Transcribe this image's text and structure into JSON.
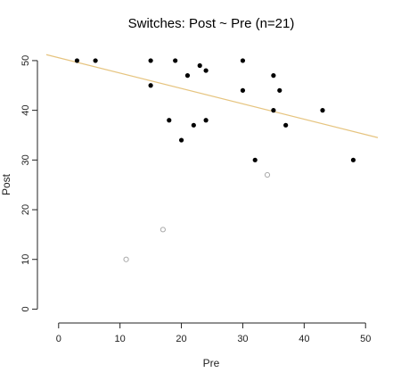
{
  "chart_data": {
    "type": "scatter",
    "title": "Switches: Post ~ Pre (n=21)",
    "xlabel": "Pre",
    "ylabel": "Post",
    "xlim": [
      -2,
      52
    ],
    "ylim": [
      -1,
      52.5
    ],
    "x_ticks": [
      0,
      10,
      20,
      30,
      40,
      50
    ],
    "y_ticks": [
      0,
      10,
      20,
      30,
      40,
      50
    ],
    "x_tick_labels": [
      "0",
      "10",
      "20",
      "30",
      "40",
      "50"
    ],
    "y_tick_labels": [
      "0",
      "10",
      "20",
      "30",
      "40",
      "50"
    ],
    "grid": false,
    "series": [
      {
        "marker": "filled-circle",
        "color": "#000000",
        "points": [
          {
            "x": 3,
            "y": 50
          },
          {
            "x": 6,
            "y": 50
          },
          {
            "x": 15,
            "y": 50
          },
          {
            "x": 15,
            "y": 45
          },
          {
            "x": 18,
            "y": 38
          },
          {
            "x": 19,
            "y": 50
          },
          {
            "x": 20,
            "y": 34
          },
          {
            "x": 21,
            "y": 47
          },
          {
            "x": 22,
            "y": 37
          },
          {
            "x": 23,
            "y": 49
          },
          {
            "x": 24,
            "y": 48
          },
          {
            "x": 24,
            "y": 38
          },
          {
            "x": 30,
            "y": 50
          },
          {
            "x": 30,
            "y": 44
          },
          {
            "x": 32,
            "y": 30
          },
          {
            "x": 35,
            "y": 47
          },
          {
            "x": 35,
            "y": 40
          },
          {
            "x": 36,
            "y": 44
          },
          {
            "x": 37,
            "y": 37
          },
          {
            "x": 43,
            "y": 40
          },
          {
            "x": 48,
            "y": 30
          }
        ]
      },
      {
        "marker": "open-circle",
        "color": "#aaaaaa",
        "points": [
          {
            "x": 11,
            "y": 10
          },
          {
            "x": 17,
            "y": 16
          },
          {
            "x": 34,
            "y": 27
          }
        ]
      }
    ],
    "fit_line": {
      "color": "#e6c47f",
      "x": [
        -2,
        52
      ],
      "y": [
        51.2,
        34.5
      ]
    }
  }
}
